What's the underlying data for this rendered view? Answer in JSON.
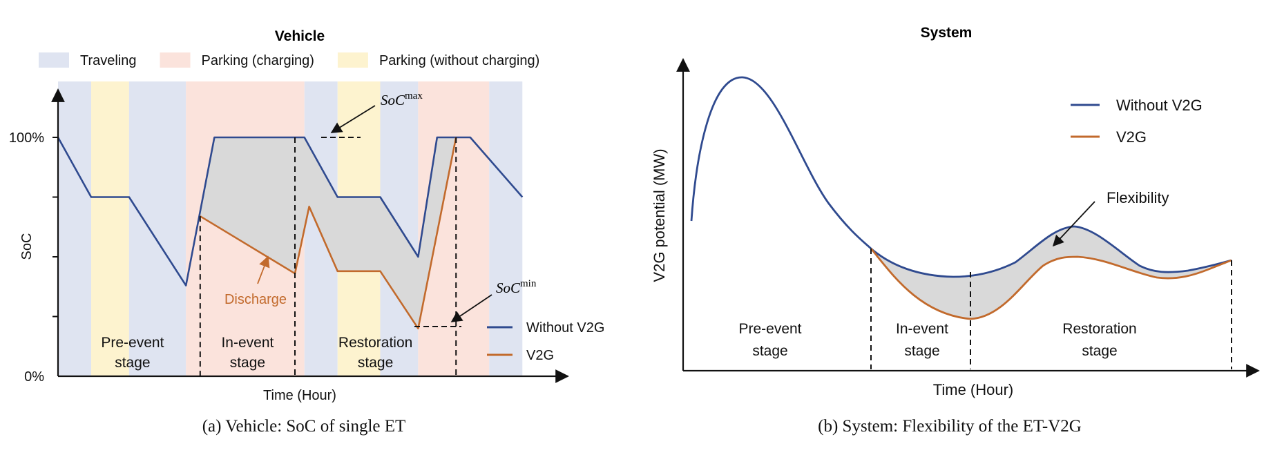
{
  "chart_data": [
    {
      "type": "line",
      "panel": "a",
      "title": "Vehicle",
      "xlabel": "Time (Hour)",
      "ylabel": "SoC",
      "yticks": [
        "100%",
        "0%"
      ],
      "ylim": [
        0,
        100
      ],
      "legend_top": [
        {
          "name": "Traveling",
          "color": "#dfe4f1"
        },
        {
          "name": "Parking (charging)",
          "color": "#fbe3dc"
        },
        {
          "name": "Parking (without charging)",
          "color": "#fdf3cf"
        }
      ],
      "bands": [
        {
          "from": 0,
          "to": 0.07,
          "kind": "Traveling"
        },
        {
          "from": 0.07,
          "to": 0.15,
          "kind": "Parking (without charging)"
        },
        {
          "from": 0.15,
          "to": 0.27,
          "kind": "Traveling"
        },
        {
          "from": 0.27,
          "to": 0.52,
          "kind": "Parking (charging)"
        },
        {
          "from": 0.52,
          "to": 0.59,
          "kind": "Traveling"
        },
        {
          "from": 0.59,
          "to": 0.68,
          "kind": "Parking (without charging)"
        },
        {
          "from": 0.68,
          "to": 0.76,
          "kind": "Traveling"
        },
        {
          "from": 0.76,
          "to": 0.91,
          "kind": "Parking (charging)"
        },
        {
          "from": 0.91,
          "to": 0.98,
          "kind": "Traveling"
        }
      ],
      "series": [
        {
          "name": "Without V2G",
          "color": "#2f4a8f",
          "points": [
            [
              0,
              100
            ],
            [
              0.07,
              75
            ],
            [
              0.15,
              75
            ],
            [
              0.27,
              38
            ],
            [
              0.33,
              100
            ],
            [
              0.52,
              100
            ],
            [
              0.59,
              75
            ],
            [
              0.68,
              75
            ],
            [
              0.76,
              50
            ],
            [
              0.8,
              100
            ],
            [
              0.87,
              100
            ],
            [
              0.98,
              75
            ]
          ]
        },
        {
          "name": "V2G",
          "color": "#c26a2c",
          "points": [
            [
              0.3,
              67
            ],
            [
              0.5,
              43
            ],
            [
              0.53,
              71
            ],
            [
              0.59,
              44
            ],
            [
              0.68,
              44
            ],
            [
              0.76,
              20
            ],
            [
              0.84,
              100
            ]
          ]
        }
      ],
      "stages": [
        {
          "line1": "Pre-event",
          "line2": "stage"
        },
        {
          "line1": "In-event",
          "line2": "stage"
        },
        {
          "line1": "Restoration",
          "line2": "stage"
        }
      ],
      "stage_bounds": [
        0.3,
        0.5,
        0.84
      ],
      "annotations": {
        "soc_max_base": "SoC",
        "soc_max_sup": "max",
        "soc_min_base": "SoC",
        "soc_min_sup": "min",
        "discharge": "Discharge"
      },
      "caption": "(a)  Vehicle: SoC of single ET"
    },
    {
      "type": "line",
      "panel": "b",
      "title": "System",
      "xlabel": "Time (Hour)",
      "ylabel": "V2G potential (MW)",
      "series": [
        {
          "name": "Without V2G",
          "color": "#2f4a8f"
        },
        {
          "name": "V2G",
          "color": "#c26a2c"
        }
      ],
      "stages": [
        {
          "line1": "Pre-event",
          "line2": "stage"
        },
        {
          "line1": "In-event",
          "line2": "stage"
        },
        {
          "line1": "Restoration",
          "line2": "stage"
        }
      ],
      "annotations": {
        "flexibility": "Flexibility"
      },
      "caption": "(b)  System: Flexibility of the ET-V2G"
    }
  ]
}
